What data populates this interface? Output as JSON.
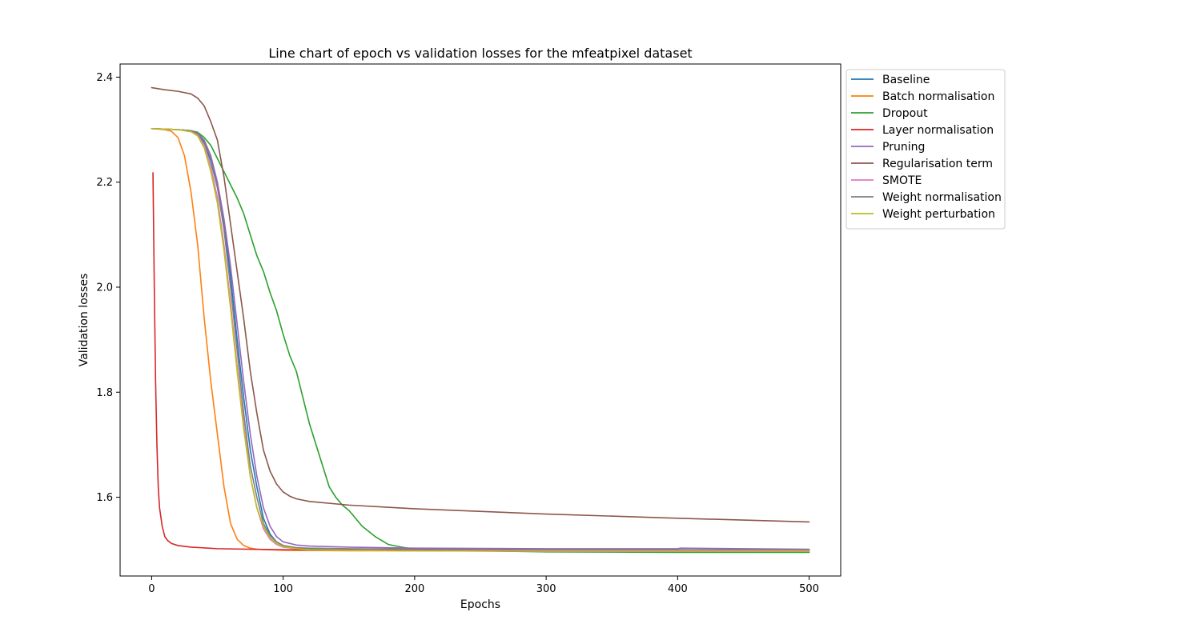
{
  "chart_data": {
    "type": "line",
    "title": "Line chart of epoch vs validation losses for the mfeatpixel dataset",
    "xlabel": "Epochs",
    "ylabel": "Validation losses",
    "xlim": [
      -24,
      524
    ],
    "ylim": [
      1.45,
      2.425
    ],
    "xticks": [
      0,
      100,
      200,
      300,
      400,
      500
    ],
    "yticks": [
      1.6,
      1.8,
      2.0,
      2.2,
      2.4
    ],
    "xtick_labels": [
      "0",
      "100",
      "200",
      "300",
      "400",
      "500"
    ],
    "ytick_labels": [
      "1.6",
      "1.8",
      "2.0",
      "2.2",
      "2.4"
    ],
    "grid": false,
    "legend_position": "outside-top-right",
    "series": [
      {
        "name": "Baseline",
        "color": "#1f77b4",
        "x": [
          0,
          20,
          30,
          35,
          40,
          45,
          50,
          55,
          60,
          65,
          70,
          75,
          80,
          85,
          90,
          95,
          100,
          110,
          120,
          150,
          200,
          300,
          400,
          500
        ],
        "y": [
          2.302,
          2.3,
          2.298,
          2.292,
          2.275,
          2.24,
          2.19,
          2.12,
          2.02,
          1.9,
          1.79,
          1.69,
          1.62,
          1.56,
          1.53,
          1.515,
          1.508,
          1.503,
          1.501,
          1.5,
          1.499,
          1.498,
          1.497,
          1.497
        ]
      },
      {
        "name": "Batch normalisation",
        "color": "#ff7f0e",
        "x": [
          0,
          10,
          15,
          20,
          25,
          30,
          35,
          40,
          45,
          50,
          55,
          60,
          65,
          70,
          75,
          80,
          90,
          100,
          150,
          200,
          300,
          400,
          500
        ],
        "y": [
          2.302,
          2.3,
          2.297,
          2.285,
          2.25,
          2.18,
          2.08,
          1.94,
          1.82,
          1.72,
          1.62,
          1.55,
          1.52,
          1.508,
          1.503,
          1.501,
          1.5,
          1.499,
          1.498,
          1.498,
          1.497,
          1.497,
          1.497
        ]
      },
      {
        "name": "Dropout",
        "color": "#2ca02c",
        "x": [
          0,
          20,
          30,
          35,
          40,
          45,
          50,
          55,
          60,
          65,
          70,
          75,
          80,
          85,
          90,
          95,
          100,
          105,
          110,
          115,
          120,
          125,
          130,
          135,
          140,
          145,
          150,
          155,
          160,
          170,
          180,
          190,
          200,
          250,
          300,
          400,
          500
        ],
        "y": [
          2.302,
          2.3,
          2.298,
          2.295,
          2.285,
          2.27,
          2.245,
          2.22,
          2.195,
          2.17,
          2.14,
          2.1,
          2.06,
          2.03,
          1.99,
          1.955,
          1.91,
          1.87,
          1.84,
          1.79,
          1.74,
          1.7,
          1.66,
          1.62,
          1.6,
          1.585,
          1.575,
          1.56,
          1.545,
          1.525,
          1.51,
          1.505,
          1.501,
          1.498,
          1.496,
          1.495,
          1.495
        ]
      },
      {
        "name": "Layer normalisation",
        "color": "#d62728",
        "x": [
          1,
          2,
          3,
          4,
          5,
          6,
          8,
          10,
          12,
          15,
          20,
          30,
          50,
          100,
          200,
          300,
          400,
          500
        ],
        "y": [
          2.218,
          2.0,
          1.82,
          1.7,
          1.62,
          1.58,
          1.545,
          1.525,
          1.518,
          1.512,
          1.508,
          1.505,
          1.502,
          1.5,
          1.499,
          1.499,
          1.499,
          1.499
        ]
      },
      {
        "name": "Pruning",
        "color": "#9467bd",
        "x": [
          0,
          20,
          30,
          35,
          40,
          45,
          50,
          55,
          60,
          65,
          70,
          75,
          80,
          85,
          90,
          95,
          100,
          110,
          120,
          150,
          200,
          300,
          400,
          402,
          500
        ],
        "y": [
          2.302,
          2.3,
          2.298,
          2.294,
          2.28,
          2.25,
          2.2,
          2.13,
          2.04,
          1.93,
          1.82,
          1.72,
          1.64,
          1.58,
          1.545,
          1.525,
          1.515,
          1.509,
          1.507,
          1.505,
          1.503,
          1.502,
          1.502,
          1.503,
          1.501
        ]
      },
      {
        "name": "Regularisation term",
        "color": "#8c564b",
        "x": [
          0,
          10,
          20,
          30,
          35,
          40,
          45,
          50,
          55,
          60,
          65,
          70,
          75,
          80,
          85,
          90,
          95,
          100,
          105,
          110,
          120,
          150,
          200,
          300,
          400,
          500
        ],
        "y": [
          2.38,
          2.376,
          2.373,
          2.368,
          2.36,
          2.345,
          2.315,
          2.28,
          2.21,
          2.12,
          2.03,
          1.94,
          1.84,
          1.76,
          1.69,
          1.65,
          1.625,
          1.61,
          1.602,
          1.597,
          1.592,
          1.585,
          1.578,
          1.568,
          1.56,
          1.553
        ]
      },
      {
        "name": "SMOTE",
        "color": "#e377c2",
        "x": [
          0,
          20,
          30,
          35,
          40,
          45,
          50,
          55,
          60,
          65,
          70,
          75,
          80,
          85,
          90,
          95,
          100,
          110,
          120,
          150,
          200,
          300,
          400,
          500
        ],
        "y": [
          2.302,
          2.3,
          2.297,
          2.29,
          2.27,
          2.23,
          2.17,
          2.08,
          1.97,
          1.85,
          1.74,
          1.64,
          1.58,
          1.54,
          1.52,
          1.51,
          1.505,
          1.502,
          1.5,
          1.499,
          1.498,
          1.497,
          1.497,
          1.497
        ]
      },
      {
        "name": "Weight normalisation",
        "color": "#7f7f7f",
        "x": [
          0,
          20,
          30,
          35,
          40,
          45,
          50,
          55,
          60,
          65,
          70,
          75,
          80,
          85,
          90,
          95,
          100,
          110,
          120,
          150,
          200,
          300,
          400,
          500
        ],
        "y": [
          2.302,
          2.3,
          2.298,
          2.293,
          2.278,
          2.245,
          2.19,
          2.11,
          2.0,
          1.88,
          1.76,
          1.66,
          1.6,
          1.55,
          1.527,
          1.515,
          1.508,
          1.504,
          1.503,
          1.502,
          1.501,
          1.5,
          1.5,
          1.5
        ]
      },
      {
        "name": "Weight perturbation",
        "color": "#bcbd22",
        "x": [
          0,
          20,
          30,
          35,
          40,
          45,
          50,
          55,
          60,
          65,
          70,
          75,
          80,
          85,
          90,
          95,
          100,
          110,
          120,
          150,
          200,
          300,
          400,
          500
        ],
        "y": [
          2.302,
          2.3,
          2.296,
          2.288,
          2.265,
          2.22,
          2.16,
          2.07,
          1.96,
          1.84,
          1.73,
          1.64,
          1.58,
          1.545,
          1.523,
          1.512,
          1.506,
          1.502,
          1.5,
          1.499,
          1.498,
          1.498,
          1.498,
          1.498
        ]
      }
    ]
  }
}
